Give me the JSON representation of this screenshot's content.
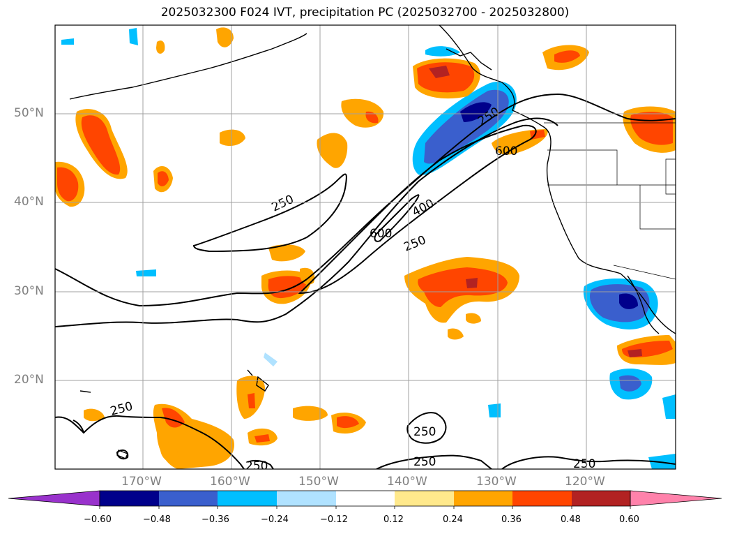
{
  "title": "2025032300 F024 IVT, precipitation PC (2025032700 - 2025032800)",
  "axes": {
    "lat_labels": [
      "50°N",
      "40°N",
      "30°N",
      "20°N"
    ],
    "lon_labels": [
      "170°W",
      "160°W",
      "150°W",
      "140°W",
      "130°W",
      "120°W"
    ]
  },
  "colorbar": {
    "tick_labels": [
      "−0.60",
      "−0.48",
      "−0.36",
      "−0.24",
      "−0.12",
      "0.12",
      "0.24",
      "0.36",
      "0.48",
      "0.60"
    ],
    "colors": [
      "#9932cc",
      "#00008b",
      "#3a5fcd",
      "#00bfff",
      "#b0e2ff",
      "#ffffff",
      "#ffe98c",
      "#ffa500",
      "#ff4500",
      "#b22222",
      "#ff82ab"
    ]
  },
  "contour_labels": [
    "250",
    "250",
    "400",
    "600",
    "600",
    "250",
    "250",
    "250",
    "250",
    "250",
    "250"
  ],
  "map_extent": {
    "lon": [
      -180,
      -110
    ],
    "lat": [
      10,
      60
    ]
  }
}
